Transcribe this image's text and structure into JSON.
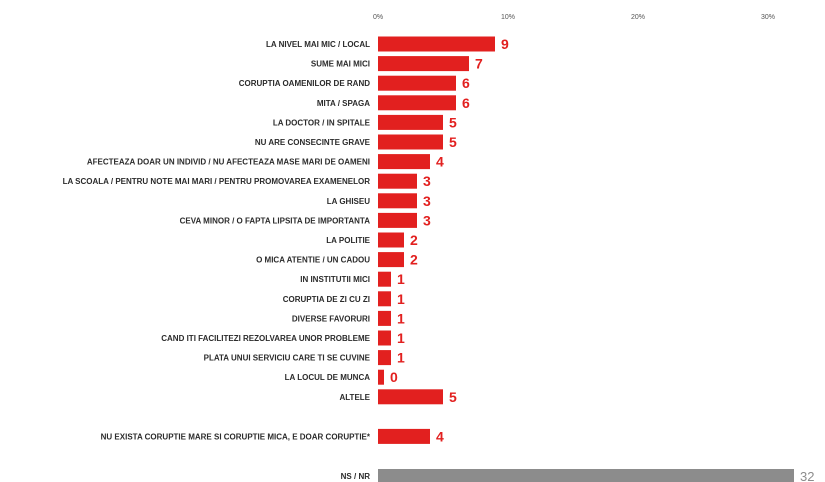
{
  "chart_data": {
    "type": "bar",
    "orientation": "horizontal",
    "xlim": [
      0,
      32
    ],
    "x_ticks": [
      {
        "value": 0,
        "label": "0%"
      },
      {
        "value": 10,
        "label": "10%"
      },
      {
        "value": 20,
        "label": "20%"
      },
      {
        "value": 30,
        "label": "30%"
      }
    ],
    "colors": {
      "main": "#e2201f",
      "nsnr": "#8c8c8c",
      "label_main": "#e2201f",
      "label_nsnr": "#8c8c8c"
    },
    "categories": [
      {
        "label": "LA NIVEL MAI MIC / LOCAL",
        "value": 9,
        "group": "main"
      },
      {
        "label": "SUME MAI MICI",
        "value": 7,
        "group": "main"
      },
      {
        "label": "CORUPTIA OAMENILOR DE RAND",
        "value": 6,
        "group": "main"
      },
      {
        "label": "MITA / SPAGA",
        "value": 6,
        "group": "main"
      },
      {
        "label": "LA DOCTOR / IN SPITALE",
        "value": 5,
        "group": "main"
      },
      {
        "label": "NU ARE CONSECINTE GRAVE",
        "value": 5,
        "group": "main"
      },
      {
        "label": "AFECTEAZA DOAR UN INDIVID / NU AFECTEAZA MASE MARI DE OAMENI",
        "value": 4,
        "group": "main"
      },
      {
        "label": "LA SCOALA / PENTRU NOTE MAI MARI / PENTRU PROMOVAREA EXAMENELOR",
        "value": 3,
        "group": "main"
      },
      {
        "label": "LA GHISEU",
        "value": 3,
        "group": "main"
      },
      {
        "label": "CEVA MINOR / O FAPTA LIPSITA DE IMPORTANTA",
        "value": 3,
        "group": "main"
      },
      {
        "label": "LA POLITIE",
        "value": 2,
        "group": "main"
      },
      {
        "label": "O MICA ATENTIE / UN CADOU",
        "value": 2,
        "group": "main"
      },
      {
        "label": "IN INSTITUTII MICI",
        "value": 1,
        "group": "main"
      },
      {
        "label": "CORUPTIA DE ZI CU ZI",
        "value": 1,
        "group": "main"
      },
      {
        "label": "DIVERSE FAVORURI",
        "value": 1,
        "group": "main"
      },
      {
        "label": "CAND ITI FACILITEZI REZOLVAREA UNOR PROBLEME",
        "value": 1,
        "group": "main"
      },
      {
        "label": "PLATA UNUI SERVICIU CARE TI SE CUVINE",
        "value": 1,
        "group": "main"
      },
      {
        "label": "LA LOCUL DE MUNCA",
        "value": 0,
        "group": "main"
      },
      {
        "label": "ALTELE",
        "value": 5,
        "group": "main"
      },
      {
        "label": "NU EXISTA CORUPTIE MARE SI CORUPTIE MICA, E DOAR CORUPTIE*",
        "value": 4,
        "group": "main"
      },
      {
        "label": "NS / NR",
        "value": 32,
        "group": "nsnr"
      }
    ]
  }
}
